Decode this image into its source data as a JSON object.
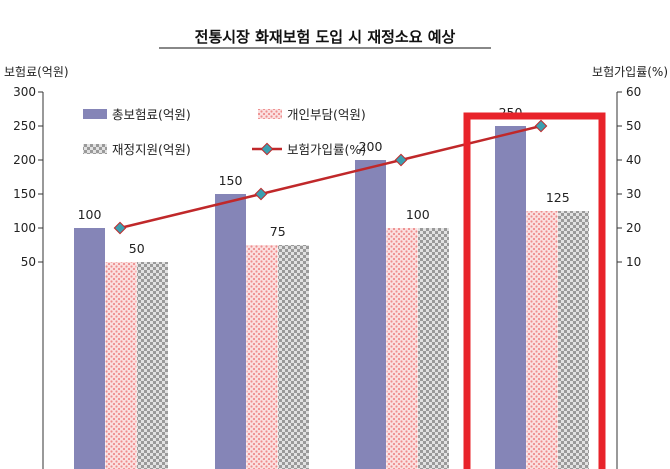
{
  "chart_data": {
    "type": "bar",
    "title": "전통시장 화재보험 도입 시 재정소요 예상",
    "ylabel": "보험료(억원)",
    "y2label": "보험가입률(%)",
    "ylim": [
      0,
      300
    ],
    "y2lim": [
      0,
      60
    ],
    "yticks": [
      "50",
      "100",
      "150",
      "200",
      "250",
      "300"
    ],
    "y2ticks": [
      "10",
      "20",
      "30",
      "40",
      "50",
      "60"
    ],
    "categories": [
      "",
      "",
      "",
      ""
    ],
    "series": [
      {
        "name": "총보험료(억원)",
        "kind": "bar",
        "values": [
          100,
          150,
          200,
          250
        ],
        "labels": [
          "100",
          "150",
          "200",
          "250"
        ],
        "color": "#8585b7"
      },
      {
        "name": "개인부담(억원)",
        "kind": "bar",
        "values": [
          50,
          75,
          100,
          125
        ],
        "labels": [
          "",
          "",
          "",
          ""
        ],
        "color": "#f6b8b8"
      },
      {
        "name": "재정지원(억원)",
        "kind": "bar",
        "values": [
          50,
          75,
          100,
          125
        ],
        "labels": [
          "50",
          "75",
          "100",
          "125"
        ],
        "color": "#d0d0d0"
      },
      {
        "name": "보험가입률(%)",
        "kind": "line",
        "axis": "y2",
        "values": [
          20,
          30,
          40,
          50
        ],
        "color": "#c0282a",
        "marker_color": "#3b9fb0"
      }
    ],
    "legend": "top-left",
    "grid": false,
    "highlight": {
      "category_index": 3,
      "color": "#e8232a"
    }
  }
}
